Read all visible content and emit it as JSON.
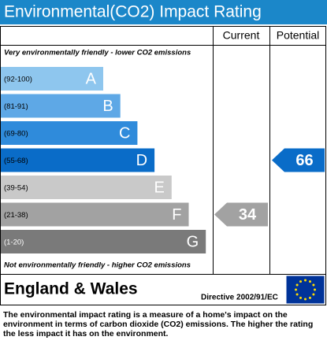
{
  "chart_data": {
    "type": "rating",
    "title": "Environmental(CO2) Impact Rating",
    "columns": [
      "Current",
      "Potential"
    ],
    "top_note": "Very environmentally friendly - lower CO2 emissions",
    "bottom_note": "Not environmentally friendly - higher CO2 emissions",
    "bands": [
      {
        "range": "(92-100)",
        "letter": "A",
        "min": 92,
        "max": 100,
        "color": "#8ec6ee"
      },
      {
        "range": "(81-91)",
        "letter": "B",
        "min": 81,
        "max": 91,
        "color": "#5ea8e6"
      },
      {
        "range": "(69-80)",
        "letter": "C",
        "min": 69,
        "max": 80,
        "color": "#2f8bdb"
      },
      {
        "range": "(55-68)",
        "letter": "D",
        "min": 55,
        "max": 68,
        "color": "#0a6cc8"
      },
      {
        "range": "(39-54)",
        "letter": "E",
        "min": 39,
        "max": 54,
        "color": "#c9c9c9"
      },
      {
        "range": "(21-38)",
        "letter": "F",
        "min": 21,
        "max": 38,
        "color": "#a2a2a2"
      },
      {
        "range": "(1-20)",
        "letter": "G",
        "min": 1,
        "max": 20,
        "color": "#7a7a7a"
      }
    ],
    "values": [
      34,
      66
    ],
    "region": "England & Wales",
    "directive": "Directive 2002/91/EC",
    "footer": "The environmental impact rating is a measure of a home's impact on the environment in terms of carbon dioxide (CO2) emissions. The higher the rating the less impact it has on the environment."
  }
}
